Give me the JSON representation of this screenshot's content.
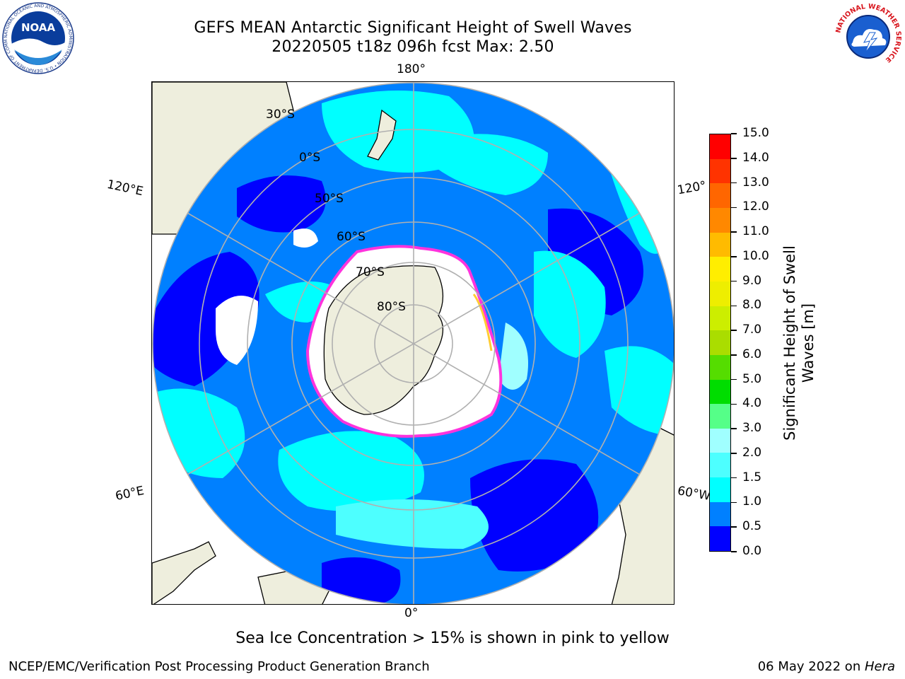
{
  "header": {
    "title_line1": "GEFS MEAN Antarctic Significant Height of Swell Waves",
    "title_line2": "20220505 t18z 096h fcst   Max: 2.50"
  },
  "map": {
    "projection": "south-polar-stereographic",
    "colors": {
      "ocean_low": "#0000ff",
      "ocean_mid": "#0080ff",
      "ocean_cyan": "#00ffff",
      "ocean_light": "#4dffff",
      "ocean_pale": "#a0ffff",
      "land": "#eeeedd",
      "ice_edge": "#ff33dd",
      "ice_highlight": "#ffcc33",
      "grid": "#b0b0b0"
    },
    "lon_labels": {
      "top": "180°",
      "bottom": "0°",
      "upper_left": "120°E",
      "lower_left": "60°E",
      "upper_right": "120°",
      "lower_right": "60°W"
    },
    "lat_labels": [
      "30°S",
      "0°S",
      "50°S",
      "60°S",
      "70°S",
      "80°S"
    ]
  },
  "colorbar": {
    "title": "Significant Height of Swell Waves [m]",
    "title_line1": "Significant Height of Swell",
    "title_line2": "Waves [m]",
    "ticks": [
      "0.0",
      "0.5",
      "1.0",
      "1.5",
      "2.0",
      "3.0",
      "4.0",
      "5.0",
      "6.0",
      "7.0",
      "8.0",
      "9.0",
      "10.0",
      "11.0",
      "12.0",
      "13.0",
      "14.0",
      "15.0"
    ],
    "colors": [
      "#0000ff",
      "#0080ff",
      "#00ffff",
      "#4dffff",
      "#a0ffff",
      "#55ff88",
      "#00dd00",
      "#55dd00",
      "#aadd00",
      "#ccee00",
      "#eeee00",
      "#ffee00",
      "#ffbb00",
      "#ff8800",
      "#ff6600",
      "#ff3300",
      "#ff0000"
    ]
  },
  "caption": "Sea Ice Concentration > 15% is shown in pink to yellow",
  "footer": {
    "left": "NCEP/EMC/Verification Post Processing Product Generation Branch",
    "right_prefix": "06 May 2022 on ",
    "right_host": "Hera"
  },
  "logos": {
    "noaa_text": "NOAA",
    "noaa_ring": "NATIONAL OCEANIC AND ATMOSPHERIC ADMINISTRATION • U.S. DEPARTMENT OF COMMERCE •",
    "nws_ring": "NATIONAL WEATHER SERVICE"
  }
}
